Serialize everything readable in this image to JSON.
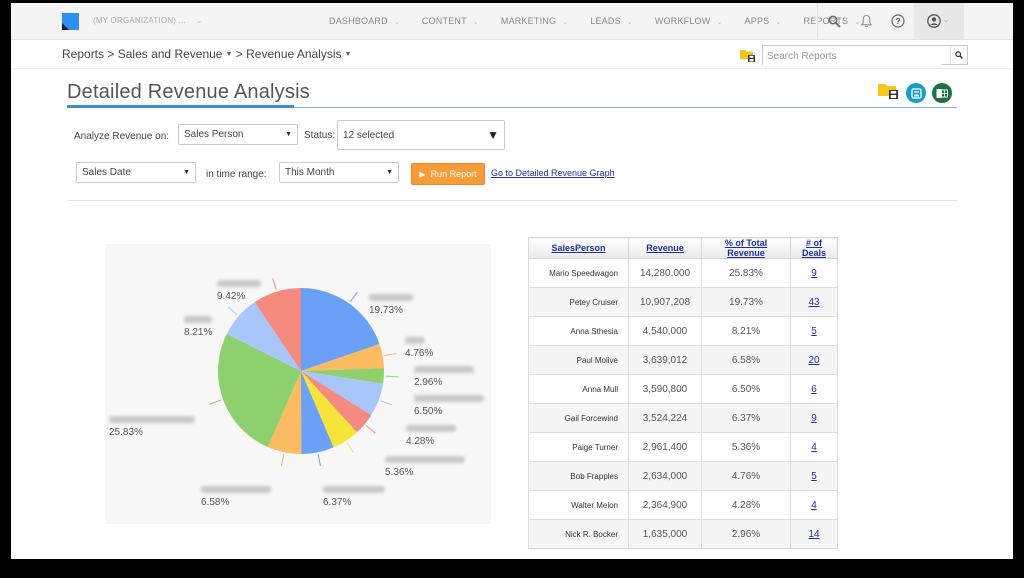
{
  "topbar": {
    "org_name": "(MY ORGANIZATION) ...",
    "nav": [
      {
        "label": "DASHBOARD"
      },
      {
        "label": "CONTENT"
      },
      {
        "label": "MARKETING"
      },
      {
        "label": "LEADS"
      },
      {
        "label": "WORKFLOW"
      },
      {
        "label": "APPS"
      },
      {
        "label": "REPORTS"
      }
    ],
    "icons": [
      "search-icon",
      "bell-icon",
      "help-icon",
      "user-icon"
    ]
  },
  "breadcrumb": {
    "items": [
      "Reports",
      "Sales and Revenue",
      "Revenue Analysis"
    ],
    "separator": ">"
  },
  "search": {
    "placeholder": "Search Reports"
  },
  "page": {
    "title": "Detailed Revenue Analysis"
  },
  "filters": {
    "analyze_label": "Analyze Revenue on:",
    "analyze_value": "Sales Person",
    "status_label": "Status:",
    "status_value": "12 selected",
    "date_field_value": "Sales Date",
    "time_range_label": "in time range:",
    "time_range_value": "This Month",
    "run_label": "Run Report",
    "graph_link": "Go to Detailed Revenue Graph"
  },
  "colors": {
    "accent": "#3a8fd0",
    "run_button": "#f89c3a",
    "link": "#1d2fa8",
    "save_circle": "#1a9cc9",
    "excel_circle": "#1e7145"
  },
  "chart_data": {
    "type": "pie",
    "title": "",
    "slices_clockwise_from_top": [
      {
        "label": "(blurred)",
        "value": 19.73,
        "color": "#6aa0f5",
        "display": "19.73%"
      },
      {
        "label": "(blurred)",
        "value": 4.76,
        "color": "#fbbb60",
        "display": "4.76%"
      },
      {
        "label": "(blurred)",
        "value": 2.96,
        "color": "#8fd06e",
        "display": "2.96%"
      },
      {
        "label": "(blurred)",
        "value": 6.5,
        "color": "#a8c6fa",
        "display": "6.50%"
      },
      {
        "label": "(blurred)",
        "value": 4.28,
        "color": "#f58a7e",
        "display": "4.28%"
      },
      {
        "label": "(blurred)",
        "value": 5.36,
        "color": "#f7e43a",
        "display": "5.36%"
      },
      {
        "label": "(blurred)",
        "value": 6.37,
        "color": "#6aa0f5",
        "display": "6.37%"
      },
      {
        "label": "(blurred)",
        "value": 6.58,
        "color": "#fbbb60",
        "display": "6.58%"
      },
      {
        "label": "(blurred)",
        "value": 25.83,
        "color": "#8fd06e",
        "display": "25.83%"
      },
      {
        "label": "(blurred)",
        "value": 8.21,
        "color": "#a8c6fa",
        "display": "8.21%"
      },
      {
        "label": "(blurred)",
        "value": 9.42,
        "color": "#f58a7e",
        "display": "9.42%"
      }
    ],
    "legend": "none (callout labels, names blurred)"
  },
  "table": {
    "headers": [
      "SalesPerson",
      "Revenue",
      "% of Total Revenue",
      "# of Deals"
    ],
    "rows": [
      {
        "name": "Mario Speedwagon",
        "revenue": "14,280,000",
        "pct": "25.83%",
        "deals": "9"
      },
      {
        "name": "Petey Cruiser",
        "revenue": "10,907,208",
        "pct": "19.73%",
        "deals": "43"
      },
      {
        "name": "Anna Sthesia",
        "revenue": "4,540,000",
        "pct": "8.21%",
        "deals": "5"
      },
      {
        "name": "Paul Molive",
        "revenue": "3,639,012",
        "pct": "6.58%",
        "deals": "20"
      },
      {
        "name": "Anna Mull",
        "revenue": "3,590,800",
        "pct": "6.50%",
        "deals": "6"
      },
      {
        "name": "Gail Forcewind",
        "revenue": "3,524,224",
        "pct": "6.37%",
        "deals": "9"
      },
      {
        "name": "Paige Turner",
        "revenue": "2,961,400",
        "pct": "5.36%",
        "deals": "4"
      },
      {
        "name": "Bob Frapples",
        "revenue": "2,634,000",
        "pct": "4.76%",
        "deals": "5"
      },
      {
        "name": "Walter Melon",
        "revenue": "2,364,900",
        "pct": "4.28%",
        "deals": "4"
      },
      {
        "name": "Nick R. Bocker",
        "revenue": "1,635,000",
        "pct": "2.96%",
        "deals": "14"
      }
    ]
  }
}
